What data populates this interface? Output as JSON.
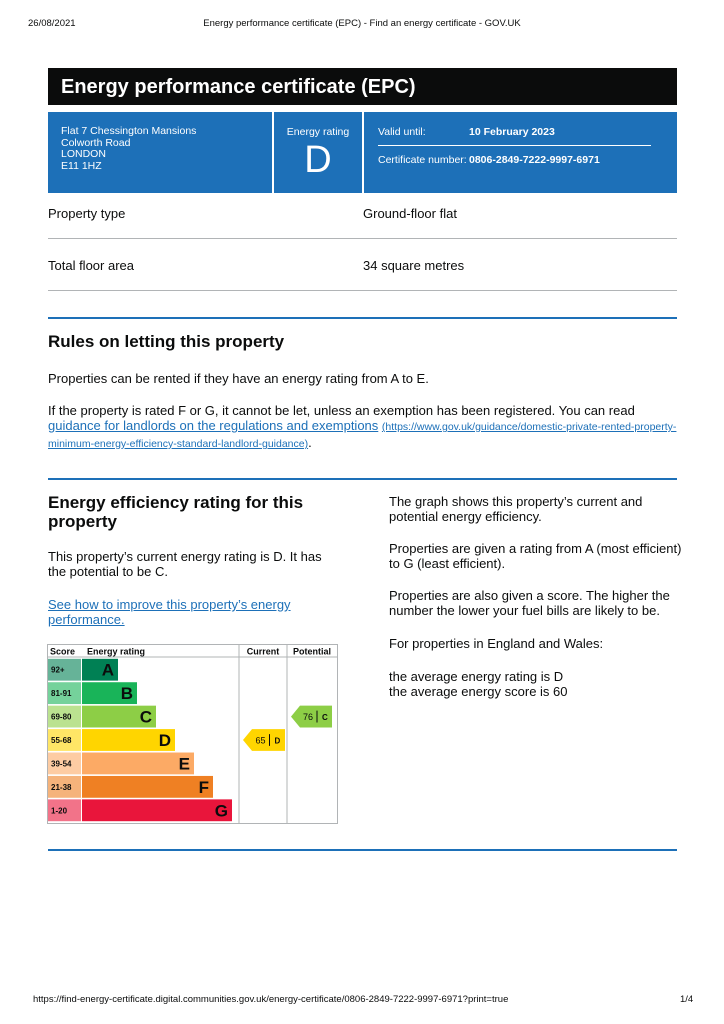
{
  "print_header": {
    "date": "26/08/2021",
    "title": "Energy performance certificate (EPC) - Find an energy certificate - GOV.UK"
  },
  "certificate": {
    "title": "Energy performance certificate (EPC)",
    "address": [
      "Flat 7 Chessington Mansions",
      "Colworth Road",
      "LONDON",
      "E11 1HZ"
    ],
    "rating_label": "Energy rating",
    "rating": "D",
    "valid_until_label": "Valid until:",
    "valid_until": "10 February 2023",
    "certificate_number_label": "Certificate number:",
    "certificate_number": "0806-2849-7222-9997-6971"
  },
  "summary": {
    "rows": [
      [
        "Property type",
        "Ground-floor flat"
      ],
      [
        "Total floor area",
        "34 square metres"
      ]
    ]
  },
  "letting": {
    "heading": "Rules on letting this property",
    "intro": "Properties can be rented if they have an energy rating from A to E.",
    "exemption": {
      "text": "If the property is rated F or G, it cannot be let, unless an exemption has been registered. You can read ",
      "link": "guidance for landlords on the regulations and exemptions",
      "url": "(https://www.gov.uk/guidance/domestic-private-rented-property-minimum-energy-efficiency-standard-landlord-guidance)",
      "end": "."
    }
  },
  "efficiency": {
    "heading": "Energy efficiency rating for this property",
    "current_text": "This property’s current energy rating is D. It has the potential to be C.",
    "improve_link": "See how to improve this property’s energy performance.",
    "side_paragraphs": [
      "The graph shows this property’s current and potential energy efficiency.",
      "Properties are given a rating from A (most efficient) to G (least efficient).",
      "Properties are also given a score. The higher the number the lower your fuel bills are likely to be.",
      "For properties in England and Wales:"
    ],
    "averages": [
      "the average energy rating is D",
      "the average energy score is 60"
    ],
    "chart": {
      "headers": [
        "Score",
        "Energy rating",
        "Current",
        "Potential"
      ],
      "bands": [
        {
          "score": "92+",
          "letter": "A",
          "color": "#008054"
        },
        {
          "score": "81-91",
          "letter": "B",
          "color": "#19b459"
        },
        {
          "score": "69-80",
          "letter": "C",
          "color": "#8dce46"
        },
        {
          "score": "55-68",
          "letter": "D",
          "color": "#ffd500"
        },
        {
          "score": "39-54",
          "letter": "E",
          "color": "#fcaa65"
        },
        {
          "score": "21-38",
          "letter": "F",
          "color": "#ef8023"
        },
        {
          "score": "1-20",
          "letter": "G",
          "color": "#e9153b"
        }
      ],
      "current": {
        "score": 65,
        "letter": "D"
      },
      "potential": {
        "score": 76,
        "letter": "C"
      }
    }
  },
  "footer": {
    "url": "https://find-energy-certificate.digital.communities.gov.uk/energy-certificate/0806-2849-7222-9997-6971?print=true",
    "page": "1/4"
  }
}
